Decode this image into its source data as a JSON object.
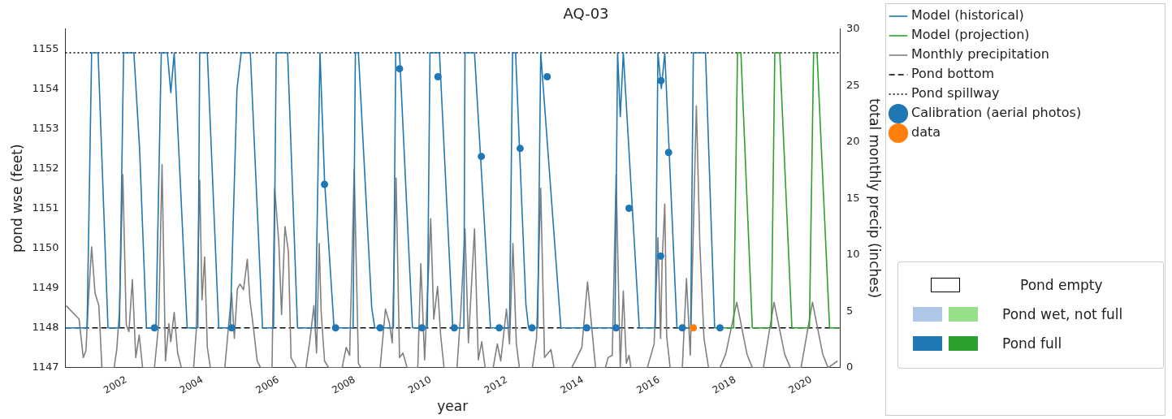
{
  "chart_data": {
    "type": "line",
    "title": "AQ-03",
    "xlabel": "year",
    "ylabel": "pond wse (feet)",
    "y2label": "total monthly precip (inches)",
    "xlim": [
      2000.4,
      2020.75
    ],
    "xticks": [
      2002,
      2004,
      2006,
      2008,
      2010,
      2012,
      2014,
      2016,
      2018,
      2020
    ],
    "ylim": [
      1147,
      1155.5
    ],
    "yticks": [
      1147,
      1148,
      1149,
      1150,
      1151,
      1152,
      1153,
      1154,
      1155
    ],
    "y2lim": [
      0,
      30
    ],
    "y2ticks": [
      0,
      5,
      10,
      15,
      20,
      25,
      30
    ],
    "grid": false,
    "legend": "top right",
    "series": [
      {
        "name": "Model (historical)",
        "type": "line",
        "marker": "none",
        "color": "#1f77b4",
        "x": [
          2000.4,
          2000.97,
          2001.09,
          2001.26,
          2001.52,
          2001.82,
          2001.93,
          2002.2,
          2002.35,
          2002.53,
          2002.78,
          2002.92,
          2003.08,
          2003.17,
          2003.26,
          2003.6,
          2003.88,
          2003.93,
          2004.13,
          2004.43,
          2004.73,
          2004.91,
          2005.02,
          2005.26,
          2005.58,
          2005.87,
          2005.94,
          2006.24,
          2006.5,
          2006.97,
          2007.09,
          2007.21,
          2007.46,
          2007.96,
          2008.02,
          2008.1,
          2008.45,
          2008.53,
          2009.02,
          2009.08,
          2009.18,
          2009.52,
          2009.91,
          2009.98,
          2010.23,
          2010.58,
          2010.87,
          2010.9,
          2011.15,
          2011.57,
          2012.07,
          2012.15,
          2012.23,
          2012.5,
          2012.57,
          2012.81,
          2012.89,
          2013.42,
          2014.84,
          2014.91,
          2014.98,
          2015.06,
          2015.48,
          2015.9,
          2015.97,
          2016.06,
          2016.15,
          2016.47,
          2016.83,
          2016.9,
          2017.22,
          2017.46
        ],
        "values": [
          1148,
          1148,
          1154.9,
          1154.9,
          1148,
          1148,
          1154.9,
          1154.9,
          1152.5,
          1148,
          1148,
          1154.9,
          1154.9,
          1153.9,
          1154.9,
          1148,
          1148,
          1154.9,
          1154.9,
          1148,
          1148,
          1154,
          1154.9,
          1154.9,
          1148,
          1148,
          1154.9,
          1154.9,
          1148,
          1148,
          1154.9,
          1151.7,
          1148,
          1148,
          1154.9,
          1154.9,
          1148.5,
          1148,
          1148,
          1154.9,
          1154.9,
          1148,
          1148,
          1154.9,
          1154.9,
          1148,
          1148,
          1154.9,
          1154.9,
          1148,
          1148,
          1154.9,
          1154.9,
          1148.6,
          1148,
          1148,
          1154.9,
          1148,
          1148,
          1154.9,
          1153.3,
          1154.9,
          1148,
          1148,
          1154.9,
          1154,
          1154.9,
          1148,
          1148,
          1154.9,
          1154.9,
          1148
        ]
      },
      {
        "name": "Model (projection)",
        "type": "line",
        "marker": "none",
        "color": "#2ca02c",
        "x": [
          2017.46,
          2017.96,
          2018.06,
          2018.15,
          2018.45,
          2018.95,
          2019.04,
          2019.17,
          2019.49,
          2019.95,
          2020.06,
          2020.15,
          2020.48,
          2020.72
        ],
        "values": [
          1148,
          1148,
          1154.9,
          1154.9,
          1148,
          1148,
          1154.9,
          1154.9,
          1148,
          1148,
          1154.9,
          1154.9,
          1148,
          1148
        ]
      },
      {
        "name": "Monthly precipitation",
        "type": "line",
        "marker": "none",
        "axis": "y2",
        "color": "#808080",
        "x": [
          2000.42,
          2000.76,
          2000.87,
          2000.94,
          2001.01,
          2001.09,
          2001.18,
          2001.28,
          2001.36,
          2001.68,
          2001.75,
          2001.82,
          2001.91,
          2002.0,
          2002.07,
          2002.16,
          2002.25,
          2002.34,
          2002.43,
          2002.74,
          2002.85,
          2002.94,
          2003.03,
          2003.12,
          2003.17,
          2003.26,
          2003.35,
          2003.45,
          2003.77,
          2003.84,
          2003.93,
          2003.99,
          2004.06,
          2004.13,
          2004.21,
          2004.59,
          2004.69,
          2004.77,
          2004.84,
          2004.92,
          2004.99,
          2005.08,
          2005.18,
          2005.25,
          2005.35,
          2005.44,
          2005.53,
          2005.83,
          2005.9,
          2006.01,
          2006.08,
          2006.17,
          2006.26,
          2006.33,
          2006.47,
          2006.72,
          2006.82,
          2006.93,
          2007.0,
          2007.07,
          2007.12,
          2007.21,
          2007.32,
          2007.67,
          2007.78,
          2007.87,
          2007.99,
          2008.1,
          2008.17,
          2008.67,
          2008.81,
          2008.91,
          2008.99,
          2009.09,
          2009.18,
          2009.27,
          2009.38,
          2009.66,
          2009.74,
          2009.84,
          2010.0,
          2010.08,
          2010.18,
          2010.26,
          2010.35,
          2010.69,
          2010.79,
          2010.9,
          2010.99,
          2011.15,
          2011.25,
          2011.34,
          2011.43,
          2011.64,
          2011.75,
          2011.84,
          2011.99,
          2012.07,
          2012.16,
          2012.25,
          2012.33,
          2012.67,
          2012.78,
          2012.89,
          2012.99,
          2013.16,
          2013.24,
          2013.7,
          2013.81,
          2013.97,
          2014.12,
          2014.33,
          2014.59,
          2014.66,
          2014.77,
          2014.87,
          2014.98,
          2015.06,
          2015.14,
          2015.21,
          2015.26,
          2015.69,
          2015.87,
          2015.97,
          2016.04,
          2016.08,
          2016.15,
          2016.2,
          2016.29,
          2016.61,
          2016.72,
          2016.82,
          2016.98,
          2017.07,
          2017.18,
          2017.3,
          2017.6,
          2017.75,
          2018.04,
          2018.31,
          2018.45,
          2018.74,
          2019.02,
          2019.3,
          2019.45,
          2019.73,
          2020.03,
          2020.3,
          2020.44,
          2020.69
        ],
        "values": [
          5.5,
          4.3,
          0.9,
          1.5,
          6.2,
          10.7,
          6.6,
          5.5,
          0,
          0,
          1.6,
          5,
          17.1,
          3.8,
          3.2,
          7.8,
          0.9,
          2.9,
          0,
          0,
          3.8,
          18,
          0.6,
          3.9,
          2.3,
          4.9,
          1.3,
          0,
          0,
          3.3,
          16.6,
          6,
          9.8,
          1.8,
          0,
          0,
          3.8,
          6.6,
          2.6,
          7,
          7.4,
          6.9,
          9.6,
          6,
          3.3,
          0.6,
          0,
          0,
          15.9,
          11,
          4.7,
          12.5,
          10.3,
          0.9,
          0,
          0,
          2.3,
          5.5,
          1.3,
          11,
          5,
          0.6,
          0,
          0,
          1.8,
          1.1,
          17.6,
          0.4,
          0,
          0,
          5.2,
          4,
          2.2,
          16.8,
          0.9,
          1.3,
          0,
          0,
          9.2,
          0.7,
          13.2,
          4.3,
          7.2,
          2.9,
          0,
          0,
          5,
          12.3,
          2.2,
          12.3,
          0.7,
          2.3,
          0,
          0,
          2.1,
          0.6,
          5.2,
          2.1,
          11,
          2.1,
          0,
          0,
          2.6,
          15.9,
          0.9,
          1.6,
          0,
          0,
          0.7,
          1.8,
          7.6,
          0,
          0,
          0.9,
          1.1,
          17.1,
          0,
          6.8,
          0.4,
          1.1,
          0,
          0,
          2.1,
          11.5,
          2.6,
          9.4,
          14.5,
          2.8,
          0,
          0,
          7.9,
          1.1,
          23.2,
          11,
          2.6,
          0,
          0,
          1.2,
          5.8,
          1.2,
          0,
          0,
          5.8,
          1.2,
          0,
          0,
          5.8,
          1.2,
          0,
          0.6
        ]
      },
      {
        "name": "Calibration (aerial photos)",
        "type": "scatter",
        "marker": "circle",
        "color": "#1f77b4",
        "x": [
          2002.74,
          2004.77,
          2007.21,
          2007.5,
          2008.67,
          2009.18,
          2009.77,
          2010.19,
          2010.62,
          2011.33,
          2011.8,
          2012.35,
          2012.66,
          2013.06,
          2014.1,
          2014.87,
          2015.21,
          2016.04,
          2016.05,
          2016.25,
          2016.61,
          2017.6
        ],
        "values": [
          1148,
          1148,
          1151.6,
          1148,
          1148,
          1154.5,
          1148,
          1154.3,
          1148,
          1152.3,
          1148,
          1152.5,
          1148,
          1154.3,
          1148,
          1148,
          1151,
          1149.8,
          1154.2,
          1152.4,
          1148,
          1148
        ]
      },
      {
        "name": "data",
        "type": "scatter",
        "marker": "circle",
        "color": "#ff7f0e",
        "x": [
          2016.9
        ],
        "values": [
          1148
        ]
      }
    ],
    "ref_lines": [
      {
        "axis": "y",
        "value": 1148,
        "label": "Pond bottom",
        "color": "#000000",
        "line_style": "dashed"
      },
      {
        "axis": "y",
        "value": 1154.9,
        "label": "Pond spillway",
        "color": "#000000",
        "line_style": "dotted"
      }
    ],
    "annotations": [
      "Pond empty",
      "Pond wet, not full",
      "Pond full"
    ]
  }
}
